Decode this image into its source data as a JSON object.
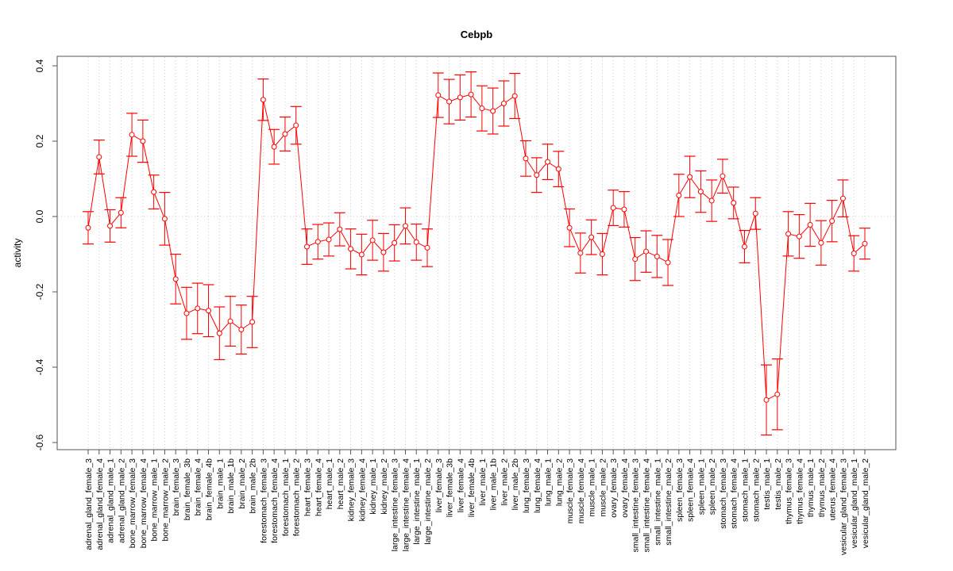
{
  "chart_data": {
    "type": "line",
    "title": "Cebpb",
    "xlabel": "",
    "ylabel": "activity",
    "ylim": [
      -0.62,
      0.4
    ],
    "yticks": [
      -0.6,
      -0.4,
      -0.2,
      0.0,
      0.2,
      0.4
    ],
    "ytick_labels": [
      "-0.6",
      "-0.4",
      "-0.2",
      "0.0",
      "0.2",
      "0.4"
    ],
    "grid": "vertical dotted, horizontal dotted at 0",
    "color": "#ff0000",
    "categories": [
      "adrenal_gland_female_3",
      "adrenal_gland_female_4",
      "adrenal_gland_male_1",
      "adrenal_gland_male_2",
      "bone_marrow_female_3",
      "bone_marrow_female_4",
      "bone_marrow_male_1",
      "bone_marrow_male_2",
      "brain_female_3",
      "brain_female_3b",
      "brain_female_4",
      "brain_female_4b",
      "brain_male_1",
      "brain_male_1b",
      "brain_male_2",
      "brain_male_2b",
      "forestomach_female_3",
      "forestomach_female_4",
      "forestomach_male_1",
      "forestomach_male_2",
      "heart_female_3",
      "heart_female_4",
      "heart_male_1",
      "heart_male_2",
      "kidney_female_3",
      "kidney_female_4",
      "kidney_male_1",
      "kidney_male_2",
      "large_intestine_female_3",
      "large_intestine_female_4",
      "large_intestine_male_1",
      "large_intestine_male_2",
      "liver_female_3",
      "liver_female_3b",
      "liver_female_4",
      "liver_female_4b",
      "liver_male_1",
      "liver_male_1b",
      "liver_male_2",
      "liver_male_2b",
      "lung_female_3",
      "lung_female_4",
      "lung_male_1",
      "lung_male_2",
      "muscle_female_3",
      "muscle_female_4",
      "muscle_male_1",
      "muscle_male_2",
      "ovary_female_3",
      "ovary_female_4",
      "small_intestine_female_3",
      "small_intestine_female_4",
      "small_intestine_male_1",
      "small_intestine_male_2",
      "spleen_female_3",
      "spleen_female_4",
      "spleen_male_1",
      "spleen_male_2",
      "stomach_female_3",
      "stomach_female_4",
      "stomach_male_1",
      "stomach_male_2",
      "testis_male_1",
      "testis_male_2",
      "thymus_female_3",
      "thymus_female_4",
      "thymus_male_1",
      "thymus_male_2",
      "uterus_female_4",
      "vesicular_gland_female_3",
      "vesicular_gland_male_1",
      "vesicular_gland_male_2"
    ],
    "values": [
      -0.03,
      0.158,
      -0.025,
      0.01,
      0.217,
      0.2,
      0.065,
      -0.006,
      -0.166,
      -0.257,
      -0.244,
      -0.25,
      -0.31,
      -0.278,
      -0.3,
      -0.28,
      0.31,
      0.185,
      0.219,
      0.242,
      -0.08,
      -0.067,
      -0.061,
      -0.034,
      -0.086,
      -0.101,
      -0.063,
      -0.095,
      -0.07,
      -0.025,
      -0.068,
      -0.083,
      0.322,
      0.305,
      0.316,
      0.324,
      0.287,
      0.28,
      0.3,
      0.32,
      0.154,
      0.11,
      0.145,
      0.126,
      -0.03,
      -0.097,
      -0.055,
      -0.1,
      0.023,
      0.019,
      -0.113,
      -0.093,
      -0.106,
      -0.122,
      0.056,
      0.105,
      0.066,
      0.042,
      0.107,
      0.036,
      -0.08,
      0.008,
      -0.487,
      -0.472,
      -0.046,
      -0.053,
      -0.022,
      -0.07,
      -0.012,
      0.048,
      -0.098,
      -0.072
    ],
    "errors": [
      0.043,
      0.045,
      0.043,
      0.04,
      0.057,
      0.056,
      0.045,
      0.07,
      0.066,
      0.069,
      0.067,
      0.069,
      0.07,
      0.066,
      0.065,
      0.068,
      0.055,
      0.046,
      0.045,
      0.05,
      0.047,
      0.046,
      0.044,
      0.044,
      0.053,
      0.054,
      0.053,
      0.05,
      0.048,
      0.048,
      0.048,
      0.05,
      0.059,
      0.059,
      0.06,
      0.06,
      0.06,
      0.061,
      0.06,
      0.06,
      0.047,
      0.046,
      0.047,
      0.047,
      0.05,
      0.053,
      0.046,
      0.055,
      0.047,
      0.047,
      0.057,
      0.055,
      0.056,
      0.061,
      0.056,
      0.055,
      0.055,
      0.055,
      0.045,
      0.042,
      0.043,
      0.042,
      0.093,
      0.094,
      0.059,
      0.058,
      0.057,
      0.059,
      0.055,
      0.049,
      0.047,
      0.041
    ]
  }
}
